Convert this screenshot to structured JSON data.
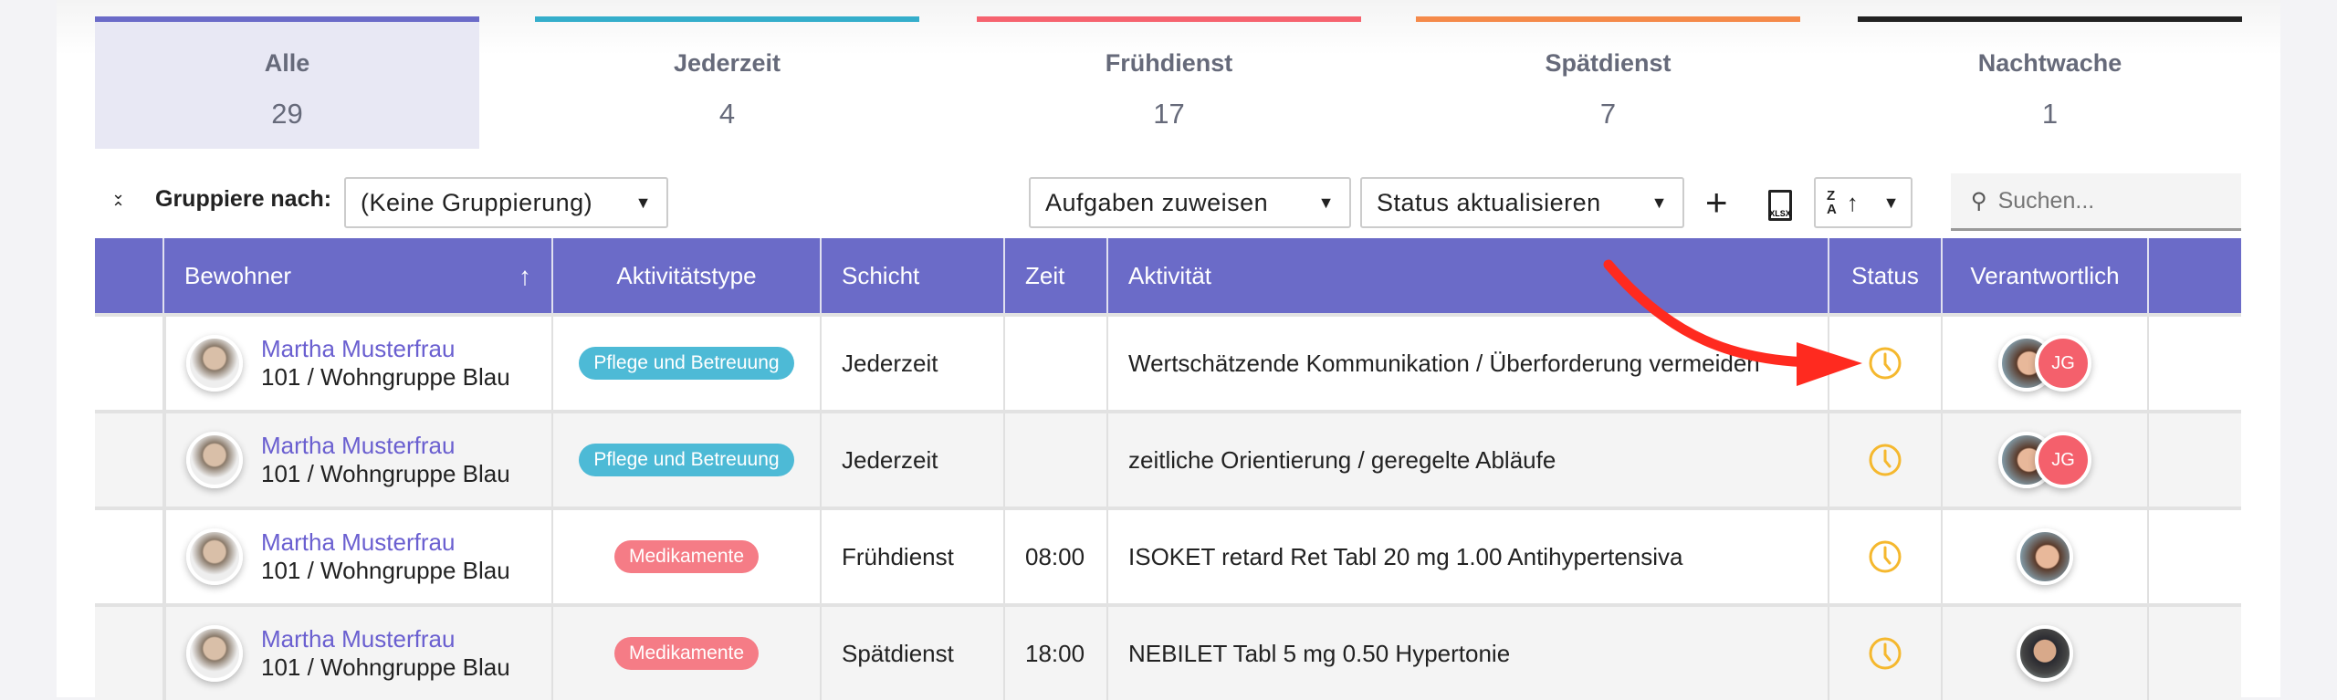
{
  "tabs": [
    {
      "label": "Alle",
      "count": "29",
      "color": "#6b6bc8",
      "active": true
    },
    {
      "label": "Jederzeit",
      "count": "4",
      "color": "#35aecb"
    },
    {
      "label": "Frühdienst",
      "count": "17",
      "color": "#f6636f"
    },
    {
      "label": "Spätdienst",
      "count": "7",
      "color": "#f58a4a"
    },
    {
      "label": "Nachtwache",
      "count": "1",
      "color": "#222222"
    }
  ],
  "toolbar": {
    "group_label": "Gruppiere nach:",
    "group_value": "(Keine Gruppierung)",
    "assign": "Aufgaben zuweisen",
    "status_update": "Status aktualisieren",
    "search_placeholder": "Suchen...",
    "sort_icon": "sort-za-icon",
    "export_icon": "xlsx-file-icon",
    "add_icon": "plus-icon"
  },
  "columns": [
    "",
    "Bewohner",
    "Aktivitätstype",
    "Schicht",
    "Zeit",
    "Aktivität",
    "Status",
    "Verantwortlich",
    ""
  ],
  "colors": {
    "header": "#6b6bc8",
    "pflege": "#4dbad6",
    "medikamente": "#f57c86",
    "status_pending": "#f5b82e",
    "link": "#6a5fd0",
    "annotation_arrow": "#ff2a1f"
  },
  "rows": [
    {
      "name": "Martha Musterfrau",
      "room": "101 / Wohngruppe Blau",
      "type": "Pflege und Betreuung",
      "type_color": "#4dbad6",
      "shift": "Jederzeit",
      "time": "",
      "activity": "Wertschätzende Kommunikation / Überforderung vermeiden",
      "status": "pending-clock-icon",
      "assignees": [
        "photo-woman",
        "JG"
      ]
    },
    {
      "name": "Martha Musterfrau",
      "room": "101 / Wohngruppe Blau",
      "type": "Pflege und Betreuung",
      "type_color": "#4dbad6",
      "shift": "Jederzeit",
      "time": "",
      "activity": "zeitliche Orientierung / geregelte Abläufe",
      "status": "pending-clock-icon",
      "assignees": [
        "photo-woman",
        "JG"
      ]
    },
    {
      "name": "Martha Musterfrau",
      "room": "101 / Wohngruppe Blau",
      "type": "Medikamente",
      "type_color": "#f57c86",
      "shift": "Frühdienst",
      "time": "08:00",
      "activity": "ISOKET retard Ret Tabl 20 mg 1.00 Antihypertensiva",
      "status": "pending-clock-icon",
      "assignees": [
        "photo-woman"
      ]
    },
    {
      "name": "Martha Musterfrau",
      "room": "101 / Wohngruppe Blau",
      "type": "Medikamente",
      "type_color": "#f57c86",
      "shift": "Spätdienst",
      "time": "18:00",
      "activity": "NEBILET Tabl 5 mg 0.50 Hypertonie",
      "status": "pending-clock-icon",
      "assignees": [
        "photo-man"
      ]
    }
  ]
}
